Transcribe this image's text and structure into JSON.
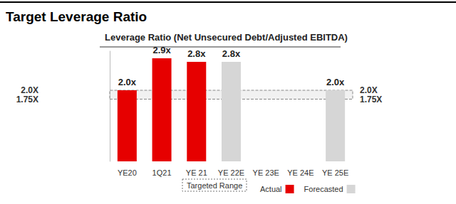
{
  "chart_data": {
    "type": "bar",
    "title": "Target Leverage Ratio",
    "subtitle": "Leverage Ratio (Net Unsecured Debt/Adjusted EBITDA)",
    "categories": [
      "YE20",
      "1Q21",
      "YE 21",
      "YE 22E",
      "YE 23E",
      "YE 24E",
      "YE 25E"
    ],
    "series": [
      {
        "name": "Actual",
        "color": "#e60000",
        "values": [
          2.0,
          2.9,
          2.8,
          null,
          null,
          null,
          null
        ],
        "value_labels": [
          "2.0x",
          "2.9x",
          "2.8x",
          null,
          null,
          null,
          null
        ]
      },
      {
        "name": "Forecasted",
        "color": "#d6d6d6",
        "values": [
          null,
          null,
          null,
          2.8,
          null,
          null,
          2.0
        ],
        "value_labels": [
          null,
          null,
          null,
          "2.8x",
          null,
          null,
          "2.0x"
        ]
      }
    ],
    "target_range": {
      "name": "Targeted Range",
      "values": [
        1.75,
        2.0
      ]
    },
    "ylim": [
      0,
      3.1
    ],
    "yticks": [
      {
        "value": 1.75,
        "label": "1.75X"
      },
      {
        "value": 2.0,
        "label": "2.0X"
      }
    ],
    "data_labels": true,
    "grid": false,
    "legend": "bottom"
  }
}
